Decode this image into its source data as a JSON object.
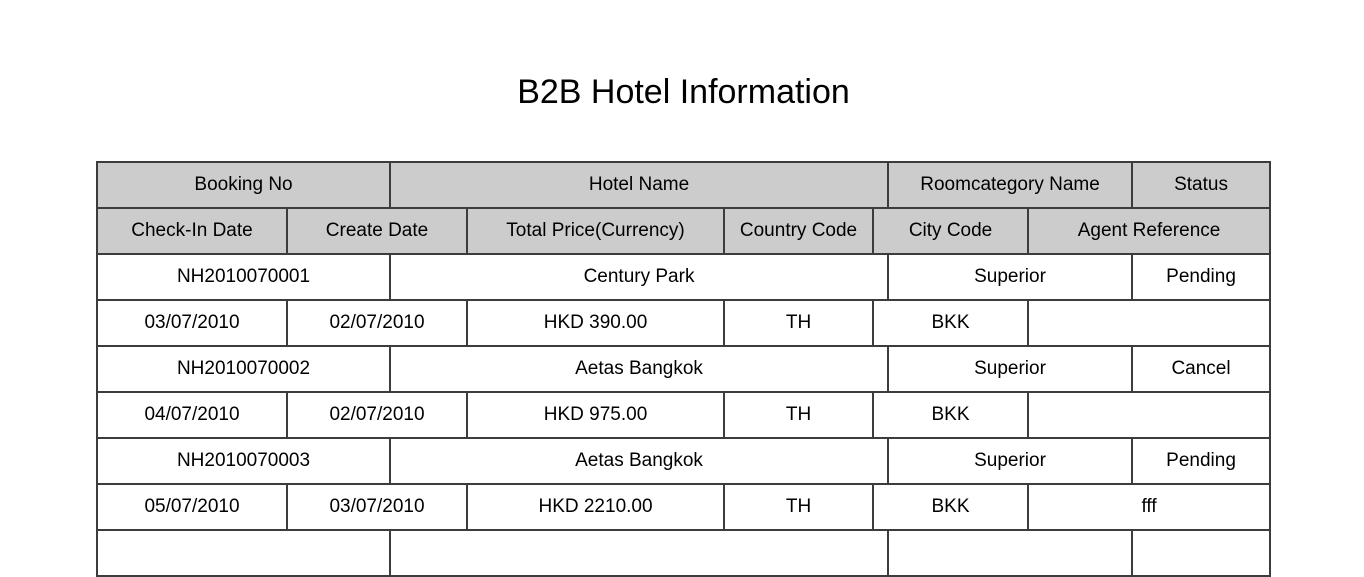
{
  "page": {
    "title": "B2B Hotel Information"
  },
  "colors": {
    "page_background": "#ffffff",
    "header_cell_background": "#cccccc",
    "table_border": "#3c3c3c",
    "text": "#000000"
  },
  "table": {
    "group_headers": {
      "booking_no": "Booking No",
      "hotel_name": "Hotel Name",
      "roomcategory_name": "Roomcategory Name",
      "status": "Status"
    },
    "detail_headers": {
      "check_in_date": "Check-In Date",
      "create_date": "Create Date",
      "total_price": "Total Price(Currency)",
      "country_code": "Country Code",
      "city_code": "City Code",
      "agent_reference": "Agent Reference"
    },
    "bookings": [
      {
        "booking_no": "NH2010070001",
        "hotel_name": "Century Park",
        "roomcategory_name": "Superior",
        "status": "Pending",
        "check_in_date": "03/07/2010",
        "create_date": "02/07/2010",
        "total_price": "HKD 390.00",
        "country_code": "TH",
        "city_code": "BKK",
        "agent_reference": ""
      },
      {
        "booking_no": "NH2010070002",
        "hotel_name": "Aetas Bangkok",
        "roomcategory_name": "Superior",
        "status": "Cancel",
        "check_in_date": "04/07/2010",
        "create_date": "02/07/2010",
        "total_price": "HKD 975.00",
        "country_code": "TH",
        "city_code": "BKK",
        "agent_reference": ""
      },
      {
        "booking_no": "NH2010070003",
        "hotel_name": "Aetas Bangkok",
        "roomcategory_name": "Superior",
        "status": "Pending",
        "check_in_date": "05/07/2010",
        "create_date": "03/07/2010",
        "total_price": "HKD 2210.00",
        "country_code": "TH",
        "city_code": "BKK",
        "agent_reference": "fff"
      }
    ],
    "partial_next_row": {
      "booking_no": "",
      "hotel_name": "",
      "roomcategory_name": "",
      "status": ""
    }
  }
}
